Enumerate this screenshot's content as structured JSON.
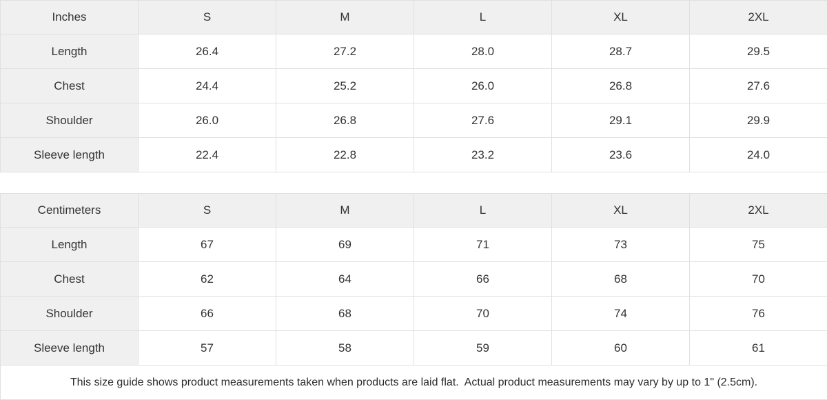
{
  "colors": {
    "header_bg": "#f0f0f0",
    "cell_bg": "#ffffff",
    "border": "#e0e0e0",
    "text": "#333333"
  },
  "tables": [
    {
      "unit_label": "Inches",
      "columns": [
        "S",
        "M",
        "L",
        "XL",
        "2XL"
      ],
      "rows": [
        {
          "label": "Length",
          "values": [
            "26.4",
            "27.2",
            "28.0",
            "28.7",
            "29.5"
          ]
        },
        {
          "label": "Chest",
          "values": [
            "24.4",
            "25.2",
            "26.0",
            "26.8",
            "27.6"
          ]
        },
        {
          "label": "Shoulder",
          "values": [
            "26.0",
            "26.8",
            "27.6",
            "29.1",
            "29.9"
          ]
        },
        {
          "label": "Sleeve length",
          "values": [
            "22.4",
            "22.8",
            "23.2",
            "23.6",
            "24.0"
          ]
        }
      ]
    },
    {
      "unit_label": "Centimeters",
      "columns": [
        "S",
        "M",
        "L",
        "XL",
        "2XL"
      ],
      "rows": [
        {
          "label": "Length",
          "values": [
            "67",
            "69",
            "71",
            "73",
            "75"
          ]
        },
        {
          "label": "Chest",
          "values": [
            "62",
            "64",
            "66",
            "68",
            "70"
          ]
        },
        {
          "label": "Shoulder",
          "values": [
            "66",
            "68",
            "70",
            "74",
            "76"
          ]
        },
        {
          "label": "Sleeve length",
          "values": [
            "57",
            "58",
            "59",
            "60",
            "61"
          ]
        }
      ]
    }
  ],
  "footer": {
    "note": "This size guide shows product measurements taken when products are laid flat.  Actual product measurements may vary by up to 1\" (2.5cm)."
  }
}
